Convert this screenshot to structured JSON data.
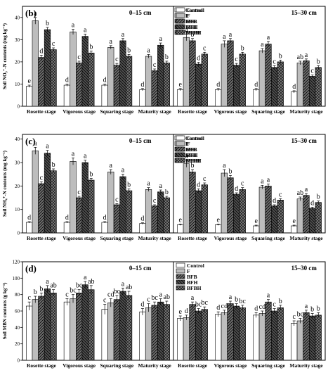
{
  "figure": {
    "series_names": [
      "Control",
      "F",
      "BFB",
      "BFH",
      "BFBH"
    ],
    "series_colors": [
      "#ffffff",
      "#bdbdbd",
      "#6f6f6f",
      "#505050",
      "#7c7c7c"
    ],
    "series_patterns": [
      "none",
      "none",
      "hatch-right",
      "hatch-left",
      "cross"
    ],
    "categories": [
      "Rosette stage",
      "Vigorous stage",
      "Squaring stage",
      "Maturity stage"
    ]
  },
  "chart_data": [
    {
      "panel": "(b)",
      "depth": "0–15 cm",
      "type": "bar",
      "ylabel": "Soil NO₃⁻-N contents (mg kg⁻¹)",
      "ylim": [
        0,
        45
      ],
      "yticks": [
        0,
        10,
        20,
        30,
        40
      ],
      "show_yticks": true,
      "show_legend": true,
      "values": [
        [
          9,
          38.5,
          22,
          34.5,
          25.5
        ],
        [
          9.5,
          33.5,
          19.5,
          31.5,
          24
        ],
        [
          9.5,
          26.5,
          18.5,
          29.5,
          22.5
        ],
        [
          7.5,
          22.5,
          16,
          27.5,
          19.5
        ]
      ],
      "errors": [
        [
          0.5,
          1.5,
          1,
          1,
          0.8
        ],
        [
          0.5,
          1.2,
          0.8,
          1,
          0.8
        ],
        [
          0.5,
          0.8,
          0.8,
          1,
          0.8
        ],
        [
          0.5,
          0.8,
          0.8,
          1,
          0.8
        ]
      ],
      "letters": [
        [
          "e",
          "a",
          "d",
          "b",
          "c"
        ],
        [
          "d",
          "a",
          "c",
          "a",
          "b"
        ],
        [
          "d",
          "a",
          "c",
          "a",
          "b"
        ],
        [
          "d",
          "a",
          "c",
          "a",
          "b"
        ]
      ]
    },
    {
      "panel": "",
      "depth": "15–30 cm",
      "type": "bar",
      "ylabel": "",
      "ylim": [
        0,
        45
      ],
      "yticks": [
        0,
        10,
        20,
        30,
        40
      ],
      "show_yticks": false,
      "show_legend": true,
      "values": [
        [
          7.5,
          31,
          29.5,
          19,
          23.5
        ],
        [
          7.5,
          28,
          29.5,
          18.5,
          23.5
        ],
        [
          7.5,
          25,
          28,
          17.5,
          20
        ],
        [
          6.5,
          19.5,
          20.5,
          13.5,
          17.5
        ]
      ],
      "errors": [
        [
          0.5,
          1.5,
          1,
          0.8,
          0.8
        ],
        [
          0.5,
          1.5,
          1,
          0.8,
          0.8
        ],
        [
          0.5,
          1,
          1.2,
          0.8,
          0.8
        ],
        [
          0.5,
          0.8,
          0.8,
          0.6,
          0.8
        ]
      ],
      "letters": [
        [
          "e",
          "a",
          "b",
          "d",
          "c"
        ],
        [
          "d",
          "a",
          "a",
          "c",
          "b"
        ],
        [
          "d",
          "a",
          "a",
          "c",
          "b"
        ],
        [
          "d",
          "ab",
          "a",
          "c",
          "b"
        ]
      ]
    },
    {
      "panel": "(c)",
      "depth": "0–15 cm",
      "type": "bar",
      "ylabel": "Soil NH₄⁺-N contents (mg kg⁻¹)",
      "ylim": [
        0,
        42
      ],
      "yticks": [
        0,
        10,
        20,
        30,
        40
      ],
      "show_yticks": true,
      "show_legend": true,
      "values": [
        [
          4.5,
          35,
          21,
          34,
          26.5
        ],
        [
          4.5,
          30.5,
          15,
          30,
          22.5
        ],
        [
          4.5,
          26,
          12,
          24,
          18
        ],
        [
          4,
          18.5,
          11.5,
          17.5,
          15
        ]
      ],
      "errors": [
        [
          0.3,
          1.5,
          0.8,
          1.2,
          0.8
        ],
        [
          0.3,
          1.5,
          0.6,
          1,
          0.8
        ],
        [
          0.3,
          1,
          0.5,
          1,
          0.8
        ],
        [
          0.3,
          0.8,
          0.5,
          0.8,
          0.6
        ]
      ],
      "letters": [
        [
          "d",
          "a",
          "c",
          "a",
          "b"
        ],
        [
          "d",
          "a",
          "c",
          "a",
          "b"
        ],
        [
          "d",
          "a",
          "c",
          "a",
          "b"
        ],
        [
          "d",
          "a",
          "c",
          "a",
          "b"
        ]
      ]
    },
    {
      "panel": "",
      "depth": "15–30 cm",
      "type": "bar",
      "ylabel": "",
      "ylim": [
        0,
        42
      ],
      "yticks": [
        0,
        10,
        20,
        30,
        40
      ],
      "show_yticks": false,
      "show_legend": true,
      "values": [
        [
          3.5,
          29.5,
          26,
          18,
          20.5
        ],
        [
          3.5,
          25.5,
          23.5,
          16.5,
          18.5
        ],
        [
          3,
          19.5,
          20,
          11.5,
          14
        ],
        [
          3,
          14.5,
          16,
          10.5,
          13
        ]
      ],
      "errors": [
        [
          0.3,
          1.5,
          1,
          0.8,
          0.8
        ],
        [
          0.3,
          1.5,
          1,
          0.6,
          0.8
        ],
        [
          0.3,
          0.8,
          0.8,
          0.5,
          0.6
        ],
        [
          0.3,
          0.8,
          0.8,
          0.5,
          0.6
        ]
      ],
      "letters": [
        [
          "e",
          "a",
          "b",
          "d",
          "c"
        ],
        [
          "e",
          "a",
          "b",
          "d",
          "c"
        ],
        [
          "e",
          "a",
          "a",
          "d",
          "c"
        ],
        [
          "e",
          "ab",
          "a",
          "d",
          "b"
        ]
      ]
    },
    {
      "panel": "(d)",
      "depth": "0–15 cm",
      "type": "bar",
      "ylabel": "Soil MBN contents (g kg⁻¹)",
      "ylim": [
        0,
        120
      ],
      "yticks": [
        0,
        20,
        40,
        60,
        80,
        100,
        120
      ],
      "show_yticks": true,
      "show_legend": false,
      "values": [
        [
          66,
          74,
          78,
          87,
          82
        ],
        [
          71,
          75,
          82,
          92,
          86
        ],
        [
          62,
          70,
          74,
          84,
          79
        ],
        [
          59,
          64,
          67,
          71,
          68
        ]
      ],
      "errors": [
        [
          5,
          4,
          4,
          4,
          4
        ],
        [
          4,
          5,
          4,
          4,
          5
        ],
        [
          6,
          5,
          5,
          4,
          5
        ],
        [
          4,
          5,
          4,
          4,
          4
        ]
      ],
      "letters": [
        [
          "c",
          "b",
          "b",
          "a",
          "ab"
        ],
        [
          "c",
          "bc",
          "bc",
          "a",
          "ab"
        ],
        [
          "c",
          "cd",
          "bc",
          "a",
          "ab"
        ],
        [
          "d",
          "c",
          "bc",
          "a",
          "ab"
        ]
      ]
    },
    {
      "panel": "",
      "depth": "15–30 cm",
      "type": "bar",
      "ylabel": "",
      "ylim": [
        0,
        120
      ],
      "yticks": [
        0,
        20,
        40,
        60,
        80,
        100,
        120
      ],
      "show_yticks": false,
      "show_legend": true,
      "values": [
        [
          51,
          52,
          68,
          60,
          62
        ],
        [
          56,
          58,
          69,
          66,
          64
        ],
        [
          55,
          57,
          71,
          60,
          64
        ],
        [
          45,
          48,
          58,
          54,
          55
        ]
      ],
      "errors": [
        [
          3,
          3,
          3,
          3,
          3
        ],
        [
          3,
          3,
          3,
          3,
          3
        ],
        [
          3,
          3,
          3,
          3,
          3
        ],
        [
          3,
          3,
          3,
          3,
          3
        ]
      ],
      "letters": [
        [
          "e",
          "d",
          "a",
          "bc",
          "bc"
        ],
        [
          "d",
          "cd",
          "a",
          "b",
          "bc"
        ],
        [
          "d",
          "cd",
          "a",
          "c",
          "b"
        ],
        [
          "c",
          "bc",
          "a",
          "b",
          "b"
        ]
      ]
    }
  ]
}
